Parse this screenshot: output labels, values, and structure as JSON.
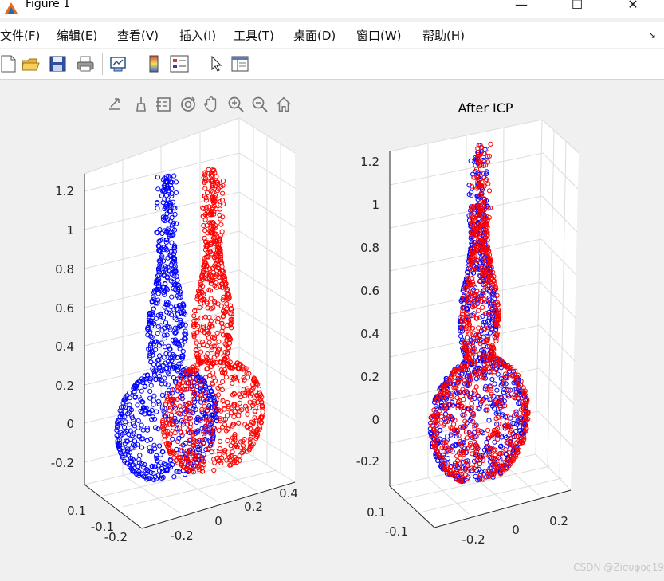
{
  "window": {
    "title": "Figure 1",
    "minimize": "—",
    "maximize": "☐",
    "close": "✕"
  },
  "menu": {
    "items": [
      "文件(F)",
      "编辑(E)",
      "查看(V)",
      "插入(I)",
      "工具(T)",
      "桌面(D)",
      "窗口(W)",
      "帮助(H)"
    ],
    "pin": "↘"
  },
  "toolbar": {
    "icons": [
      "new-figure-icon",
      "open-file-icon",
      "save-icon",
      "print-icon",
      "link-plot-icon",
      "colorbar-icon",
      "legend-icon",
      "edit-plot-icon",
      "property-inspector-icon"
    ]
  },
  "axes_toolbar": {
    "icons": [
      "export-icon",
      "brush-icon",
      "data-tips-icon",
      "rotate-3d-icon",
      "pan-icon",
      "zoom-in-icon",
      "zoom-out-icon",
      "home-icon"
    ]
  },
  "colors": {
    "source": "#0000ff",
    "target": "#ff0000",
    "grid": "#dcdcdc",
    "axis": "#262626"
  },
  "chart_data": [
    {
      "type": "scatter",
      "title": "",
      "projection": "3d",
      "z_ticks": [
        "-0.2",
        "0",
        "0.2",
        "0.4",
        "0.6",
        "0.8",
        "1",
        "1.2"
      ],
      "x_ticks": [
        "-0.2",
        "0",
        "0.2",
        "0.4"
      ],
      "y_ticks": [
        "-0.2",
        "-0.1",
        "0.1"
      ],
      "series": [
        {
          "color": "#0000ff",
          "offset": [
            -0.12,
            0.0,
            0.0
          ]
        },
        {
          "color": "#ff0000",
          "offset": [
            0.12,
            0.0,
            0.0
          ]
        }
      ]
    },
    {
      "type": "scatter",
      "title": "After ICP",
      "projection": "3d",
      "z_ticks": [
        "-0.2",
        "0",
        "0.2",
        "0.4",
        "0.6",
        "0.8",
        "1",
        "1.2"
      ],
      "x_ticks": [
        "-0.2",
        "0",
        "0.2"
      ],
      "y_ticks": [
        "-0.1",
        "0.1"
      ],
      "series": [
        {
          "color": "#0000ff",
          "offset": [
            0.0,
            0.0,
            0.0
          ]
        },
        {
          "color": "#ff0000",
          "offset": [
            0.01,
            0.0,
            0.0
          ]
        }
      ]
    }
  ],
  "watermark": "CSDN @Ziσυφος19"
}
